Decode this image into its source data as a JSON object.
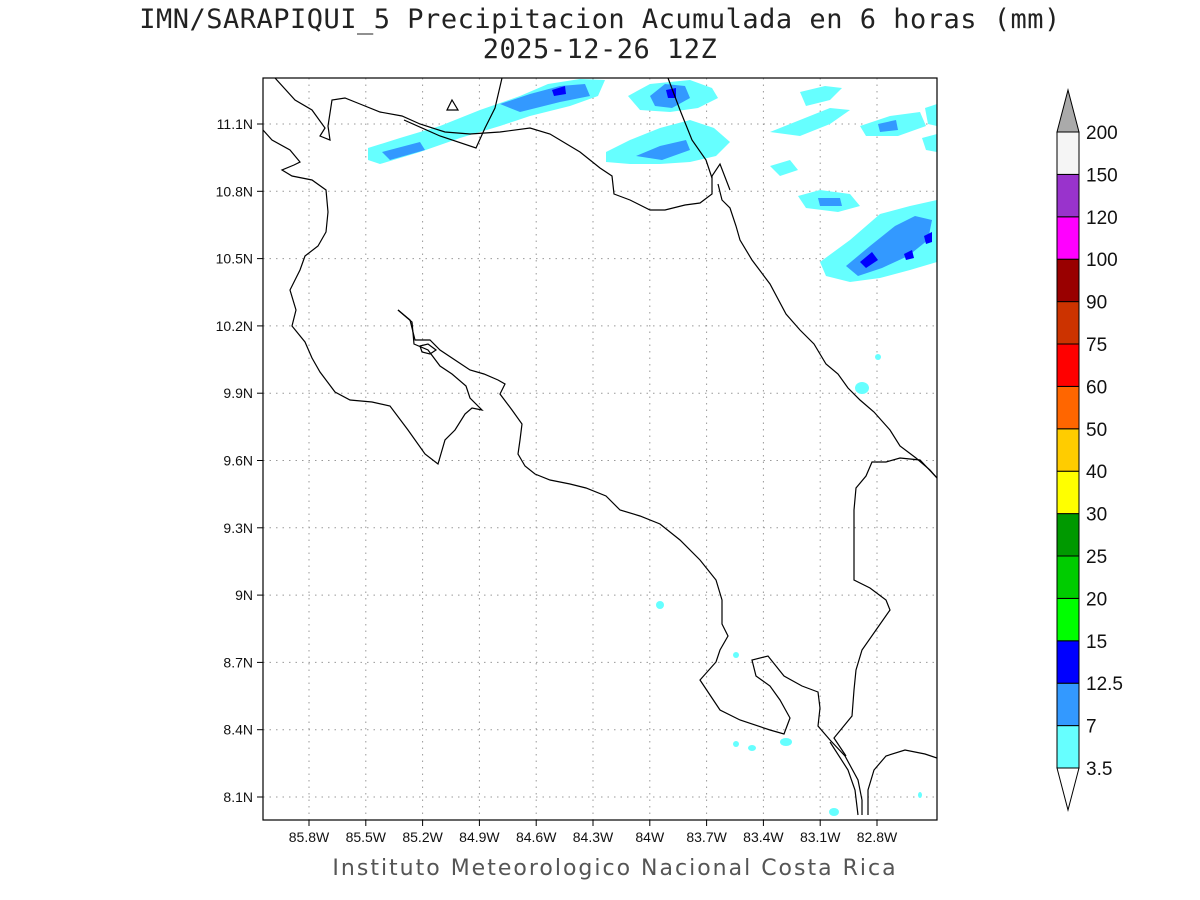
{
  "title": "IMN/SARAPIQUI_5 Precipitacion Acumulada en 6 horas (mm)",
  "subtitle": "2025-12-26 12Z",
  "footer": "Instituto Meteorologico Nacional Costa Rica",
  "map": {
    "lon_labels": [
      "85.8W",
      "85.5W",
      "85.2W",
      "84.9W",
      "84.6W",
      "84.3W",
      "84W",
      "83.7W",
      "83.4W",
      "83.1W",
      "82.8W"
    ],
    "lat_labels": [
      "11.1N",
      "10.8N",
      "10.5N",
      "10.2N",
      "9.9N",
      "9.6N",
      "9.3N",
      "9N",
      "8.7N",
      "8.4N",
      "8.1N"
    ]
  },
  "colorbar": {
    "labels": [
      "3.5",
      "7",
      "12.5",
      "15",
      "20",
      "25",
      "30",
      "40",
      "50",
      "60",
      "75",
      "90",
      "100",
      "120",
      "150",
      "200"
    ],
    "colors": [
      "#66ffff",
      "#3399ff",
      "#0000ff",
      "#00ff00",
      "#00cc00",
      "#009900",
      "#ffff00",
      "#ffcc00",
      "#ff6600",
      "#ff0000",
      "#cc3300",
      "#990000",
      "#ff00ff",
      "#9933cc",
      "#f5f5f5",
      "#aaaaaa"
    ]
  },
  "precip_colors": {
    "light": "#66ffff",
    "medium": "#3399ff",
    "heavy": "#0000ff"
  }
}
